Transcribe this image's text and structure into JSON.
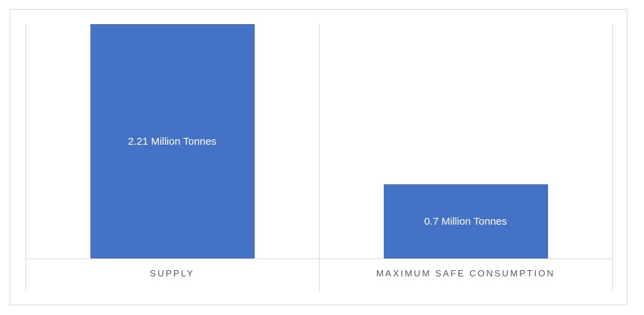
{
  "chart_data": {
    "type": "bar",
    "categories": [
      "SUPPLY",
      "MAXIMUM SAFE CONSUMPTION"
    ],
    "values": [
      2.21,
      0.7
    ],
    "data_labels": [
      "2.21 Million Tonnes",
      "0.7 Million Tonnes"
    ],
    "unit": "Million Tonnes",
    "ylim": [
      0,
      2.21
    ],
    "title": "",
    "xlabel": "",
    "ylabel": "",
    "legend": false,
    "grid": false,
    "bar_color": "#4472C4",
    "axis_line_color": "#D9D9D9",
    "category_label_color": "#595959",
    "data_label_color": "#FFFFFF"
  }
}
